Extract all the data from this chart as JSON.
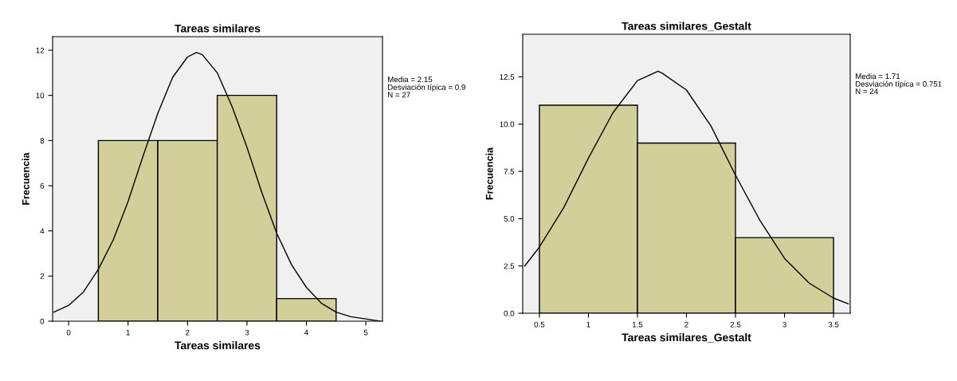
{
  "chart_data": [
    {
      "type": "histogram",
      "title": "Tareas similares",
      "xlabel": "Tareas similares",
      "ylabel": "Frecuencia",
      "bins": [
        0.5,
        1.5,
        2.5,
        3.5,
        4.5
      ],
      "values": [
        8,
        8,
        10,
        1
      ],
      "color": "#d3cf98",
      "xlim": [
        -0.27,
        5.28
      ],
      "ylim": [
        0,
        12.6
      ],
      "xticks": [
        0,
        1,
        2,
        3,
        4,
        5
      ],
      "yticks": [
        0,
        2,
        4,
        6,
        8,
        10,
        12
      ],
      "grid": false,
      "series": [
        {
          "type": "line",
          "color": "#000000",
          "x": [
            -0.25,
            0,
            0.25,
            0.5,
            0.75,
            1,
            1.25,
            1.5,
            1.75,
            2,
            2.15,
            2.25,
            2.5,
            2.75,
            3,
            3.25,
            3.5,
            3.75,
            4,
            4.25,
            4.5,
            4.75,
            5,
            5.25
          ],
          "values": [
            0.4,
            0.7,
            1.3,
            2.3,
            3.6,
            5.3,
            7.3,
            9.2,
            10.8,
            11.7,
            11.9,
            11.8,
            11.0,
            9.5,
            7.7,
            5.7,
            3.9,
            2.5,
            1.5,
            0.8,
            0.4,
            0.2,
            0.1,
            0.0
          ]
        }
      ],
      "annotations": [
        "Media = 2.15",
        "Desviación típica = 0.9",
        "N = 27"
      ]
    },
    {
      "type": "histogram",
      "title": "Tareas similares_Gestalt",
      "xlabel": "Tareas similares_Gestalt",
      "ylabel": "Frecuencia",
      "bins": [
        0.5,
        1.5,
        2.5,
        3.5
      ],
      "values": [
        11,
        9,
        4
      ],
      "color": "#d3cf98",
      "xlim": [
        0.33,
        3.67
      ],
      "ylim": [
        0,
        14.75
      ],
      "xticks": [
        0.5,
        1,
        1.5,
        2,
        2.5,
        3,
        3.5
      ],
      "yticks": [
        {
          "value": 0,
          "label": "0.0"
        },
        {
          "value": 2.5,
          "label": "2.5"
        },
        {
          "value": 5,
          "label": "5.0"
        },
        {
          "value": 7.5,
          "label": "7.5"
        },
        {
          "value": 10,
          "label": "10.0"
        },
        {
          "value": 12.5,
          "label": "12.5"
        }
      ],
      "grid": false,
      "series": [
        {
          "type": "line",
          "color": "#000000",
          "x": [
            0.35,
            0.5,
            0.75,
            1,
            1.25,
            1.5,
            1.71,
            1.75,
            2,
            2.25,
            2.5,
            2.75,
            3,
            3.25,
            3.5,
            3.65
          ],
          "values": [
            2.5,
            3.5,
            5.6,
            8.2,
            10.6,
            12.3,
            12.8,
            12.7,
            11.8,
            9.9,
            7.3,
            4.9,
            2.9,
            1.6,
            0.8,
            0.5
          ]
        }
      ],
      "annotations": [
        "Media = 1.71",
        "Desviación típica = 0.751",
        "N = 24"
      ]
    }
  ]
}
